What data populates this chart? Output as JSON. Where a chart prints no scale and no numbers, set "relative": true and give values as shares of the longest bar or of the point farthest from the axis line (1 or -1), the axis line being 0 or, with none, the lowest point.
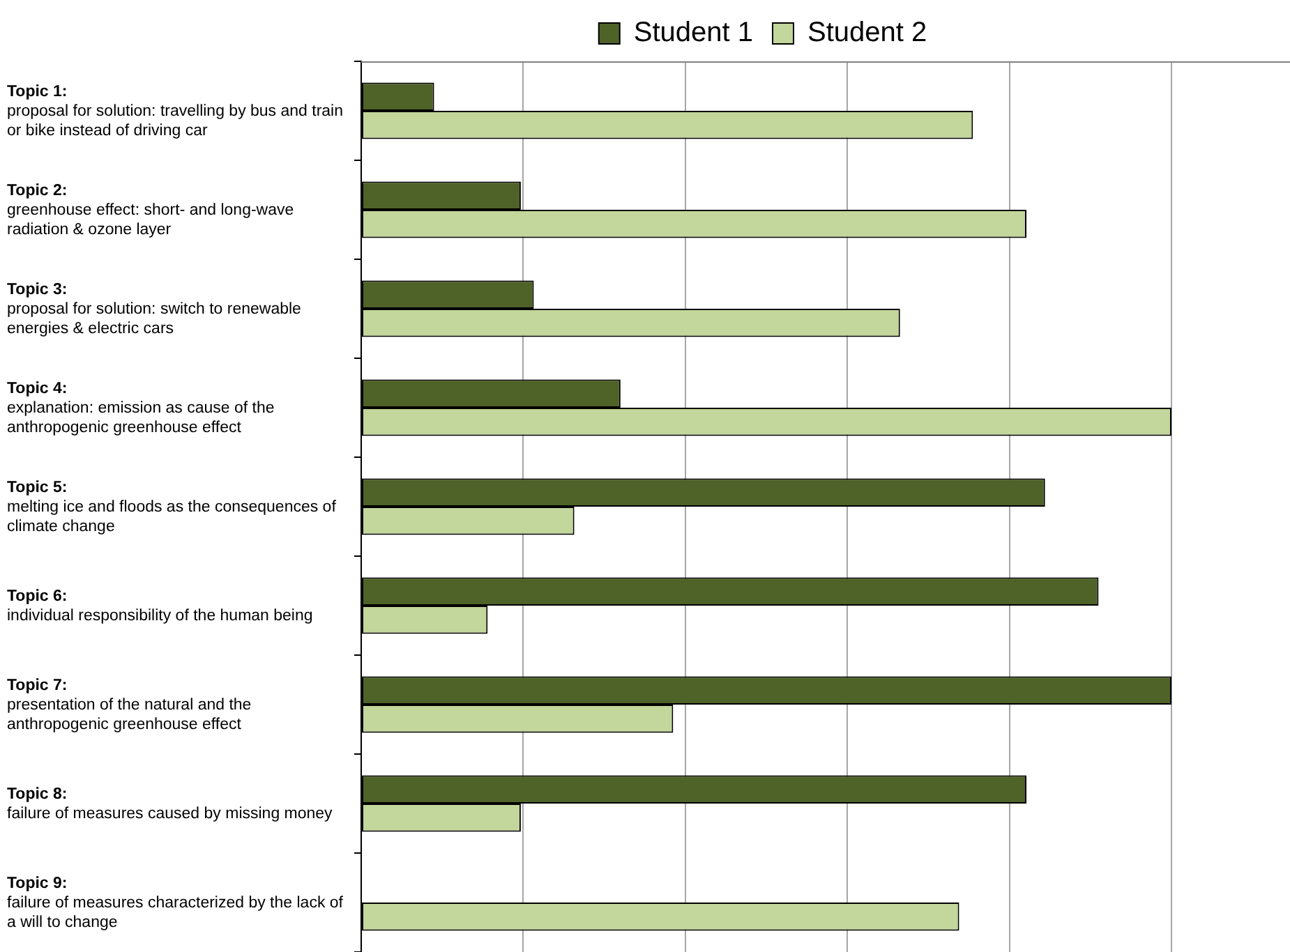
{
  "chart_data": {
    "type": "bar",
    "orientation": "horizontal",
    "relative": true,
    "grid": "x",
    "legend": "top",
    "categories": [
      "Topic 1: proposal for solution: travelling by bus and train or bike instead of driving car",
      "Topic 2: greenhouse effect: short- and long-wave radiation & ozone layer",
      "Topic 3: proposal for solution: switch to renewable energies & electric cars",
      "Topic 4: explanation: emission as cause of the anthropogenic greenhouse effect",
      "Topic 5: melting ice and floods as the consequences of climate change",
      "Topic 6: individual responsibility of the human being",
      "Topic 7: presentation of the natural and the anthropogenic greenhouse effect",
      "Topic 8: failure of measures caused by missing money",
      "Topic 9: failure of measures characterized by the lack of a will to change"
    ],
    "series": [
      {
        "name": "Student 1",
        "color": "#4f6228",
        "values": [
          0.09,
          0.197,
          0.213,
          0.32,
          0.844,
          0.91,
          1,
          0.821,
          0
        ]
      },
      {
        "name": "Student 2",
        "color": "#c3d69b",
        "values": [
          0.755,
          0.821,
          0.665,
          1,
          0.263,
          0.156,
          0.385,
          0.197,
          0.738
        ]
      }
    ]
  }
}
